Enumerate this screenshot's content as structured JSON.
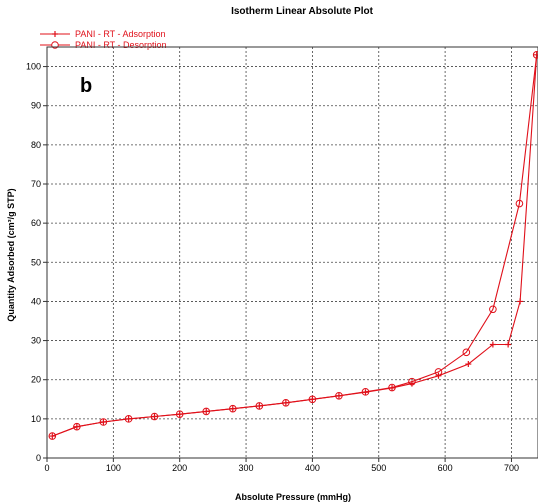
{
  "chart_data": {
    "type": "line",
    "title": "Isotherm Linear Absolute Plot",
    "panel_label": "b",
    "xlabel": "Absolute Pressure (mmHg)",
    "ylabel": "Quantity Adsorbed (cm³/g STP)",
    "xlim": [
      0,
      740
    ],
    "ylim": [
      0,
      105
    ],
    "xticks": [
      0,
      100,
      200,
      300,
      400,
      500,
      600,
      700
    ],
    "yticks": [
      0,
      10,
      20,
      30,
      40,
      50,
      60,
      70,
      80,
      90,
      100
    ],
    "grid": true,
    "legend_position": "top-left",
    "series": [
      {
        "name": "PANI - RT - Adsorption",
        "marker": "plus",
        "color": "#e0101a",
        "x": [
          8,
          45,
          85,
          123,
          162,
          200,
          240,
          280,
          320,
          360,
          400,
          440,
          480,
          520,
          550,
          590,
          635,
          672,
          695,
          713,
          738
        ],
        "y": [
          5.6,
          8.0,
          9.2,
          10.0,
          10.6,
          11.2,
          11.9,
          12.6,
          13.3,
          14.1,
          15.0,
          15.9,
          16.8,
          17.9,
          19.0,
          21.0,
          24.0,
          29.0,
          29.0,
          40.0,
          103.0
        ]
      },
      {
        "name": "PANI - RT - Desorption",
        "marker": "circle",
        "color": "#e0101a",
        "x": [
          738,
          712,
          672,
          632,
          590,
          550,
          520,
          480,
          440,
          400,
          360,
          320,
          280,
          240,
          200,
          162,
          123,
          85,
          45,
          8
        ],
        "y": [
          103.0,
          65.0,
          38.0,
          27.0,
          22.0,
          19.5,
          18.0,
          16.9,
          15.9,
          15.0,
          14.1,
          13.3,
          12.6,
          11.9,
          11.2,
          10.6,
          10.0,
          9.2,
          8.0,
          5.6
        ]
      }
    ]
  }
}
